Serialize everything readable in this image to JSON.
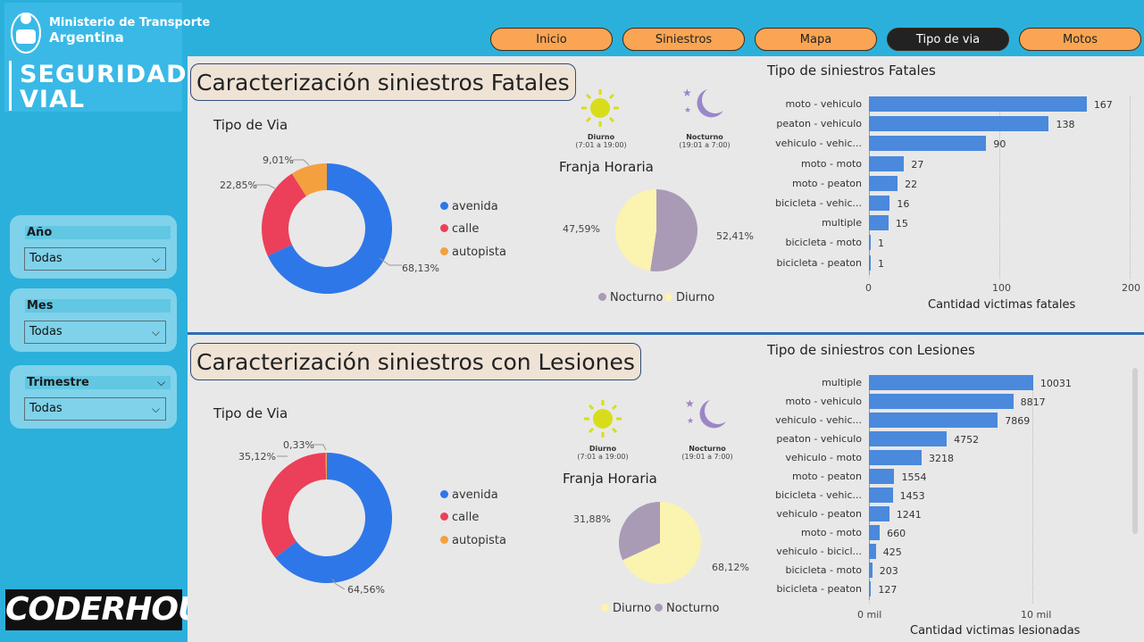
{
  "brand": {
    "ministry_line1": "Ministerio de Transporte",
    "ministry_line2": "Argentina",
    "seguridad": "SEGURIDAD",
    "vial": "VIAL",
    "footer_logo": "CODERHOUSE"
  },
  "nav": [
    "Inicio",
    "Siniestros",
    "Mapa",
    "Tipo de via",
    "Motos"
  ],
  "filters": {
    "year": {
      "label": "Año",
      "value": "Todas"
    },
    "month": {
      "label": "Mes",
      "value": "Todas"
    },
    "quarter": {
      "label": "Trimestre",
      "value": "Todas"
    }
  },
  "fatal": {
    "title": "Caracterización siniestros Fatales",
    "via_title": "Tipo de Via",
    "via_labels": {
      "avenida": "68,13%",
      "calle": "22,85%",
      "autopista": "9,01%"
    },
    "via_values": [
      68.13,
      22.85,
      9.01
    ],
    "legend": [
      "avenida",
      "calle",
      "autopista"
    ],
    "diurno_label": "Diurno",
    "diurno_range": "(7:01 a 19:00)",
    "nocturno_label": "Nocturno",
    "nocturno_range": "(19:01 a 7:00)",
    "franja_title": "Franja Horaria",
    "franja_left": "47,59%",
    "franja_right": "52,41%",
    "franja_values": {
      "nocturno": 52.41,
      "diurno": 47.59
    },
    "franja_legend": [
      "Nocturno",
      "Diurno"
    ],
    "bar_title": "Tipo de siniestros Fatales",
    "bar_axis_title": "Cantidad victimas fatales",
    "bar_ticks": [
      "0",
      "100",
      "200"
    ],
    "bars": [
      {
        "label": "moto - vehiculo",
        "value": 167
      },
      {
        "label": "peaton - vehiculo",
        "value": 138
      },
      {
        "label": "vehiculo - vehic...",
        "value": 90
      },
      {
        "label": "moto - moto",
        "value": 27
      },
      {
        "label": "moto - peaton",
        "value": 22
      },
      {
        "label": "bicicleta - vehic...",
        "value": 16
      },
      {
        "label": "multiple",
        "value": 15
      },
      {
        "label": "bicicleta - moto",
        "value": 1
      },
      {
        "label": "bicicleta - peaton",
        "value": 1
      }
    ]
  },
  "lesion": {
    "title": "Caracterización siniestros con Lesiones",
    "via_title": "Tipo de Via",
    "via_labels": {
      "avenida": "64,56%",
      "calle": "35,12%",
      "autopista": "0,33%"
    },
    "via_values": [
      64.56,
      35.12,
      0.33
    ],
    "legend": [
      "avenida",
      "calle",
      "autopista"
    ],
    "diurno_label": "Diurno",
    "diurno_range": "(7:01 a 19:00)",
    "nocturno_label": "Nocturno",
    "nocturno_range": "(19:01 a 7:00)",
    "franja_title": "Franja Horaria",
    "franja_left": "31,88%",
    "franja_right": "68,12%",
    "franja_values": {
      "diurno": 68.12,
      "nocturno": 31.88
    },
    "franja_legend": [
      "Diurno",
      "Nocturno"
    ],
    "bar_title": "Tipo de siniestros con Lesiones",
    "bar_axis_title": "Cantidad victimas lesionadas",
    "bar_ticks": [
      "0 mil",
      "10 mil"
    ],
    "bars": [
      {
        "label": "multiple",
        "value": 10031
      },
      {
        "label": "moto - vehiculo",
        "value": 8817
      },
      {
        "label": "vehiculo - vehic...",
        "value": 7869
      },
      {
        "label": "peaton - vehiculo",
        "value": 4752
      },
      {
        "label": "vehiculo - moto",
        "value": 3218
      },
      {
        "label": "moto - peaton",
        "value": 1554
      },
      {
        "label": "bicicleta - vehic...",
        "value": 1453
      },
      {
        "label": "vehiculo - peaton",
        "value": 1241
      },
      {
        "label": "moto - moto",
        "value": 660
      },
      {
        "label": "vehiculo - bicicl...",
        "value": 425
      },
      {
        "label": "bicicleta - moto",
        "value": 203
      },
      {
        "label": "bicicleta - peaton",
        "value": 127
      }
    ]
  },
  "colors": {
    "avenida": "#2e77e8",
    "calle": "#ec3f5a",
    "autopista": "#f4a03e",
    "nocturno": "#a99bb5",
    "diurno": "#fbf3b0",
    "bar": "#4a89dc"
  },
  "chart_data": [
    {
      "type": "pie",
      "title": "Tipo de Via",
      "categories": [
        "avenida",
        "calle",
        "autopista"
      ],
      "values": [
        68.13,
        22.85,
        9.01
      ]
    },
    {
      "type": "pie",
      "title": "Franja Horaria",
      "categories": [
        "Nocturno",
        "Diurno"
      ],
      "values": [
        52.41,
        47.59
      ]
    },
    {
      "type": "bar",
      "title": "Tipo de siniestros Fatales",
      "xlabel": "Cantidad victimas fatales",
      "categories": [
        "moto - vehiculo",
        "peaton - vehiculo",
        "vehiculo - vehic...",
        "moto - moto",
        "moto - peaton",
        "bicicleta - vehic...",
        "multiple",
        "bicicleta - moto",
        "bicicleta - peaton"
      ],
      "values": [
        167,
        138,
        90,
        27,
        22,
        16,
        15,
        1,
        1
      ],
      "xlim": [
        0,
        200
      ]
    },
    {
      "type": "pie",
      "title": "Tipo de Via",
      "categories": [
        "avenida",
        "calle",
        "autopista"
      ],
      "values": [
        64.56,
        35.12,
        0.33
      ]
    },
    {
      "type": "pie",
      "title": "Franja Horaria",
      "categories": [
        "Diurno",
        "Nocturno"
      ],
      "values": [
        68.12,
        31.88
      ]
    },
    {
      "type": "bar",
      "title": "Tipo de siniestros con Lesiones",
      "xlabel": "Cantidad victimas lesionadas",
      "categories": [
        "multiple",
        "moto - vehiculo",
        "vehiculo - vehic...",
        "peaton - vehiculo",
        "vehiculo - moto",
        "moto - peaton",
        "bicicleta - vehic...",
        "vehiculo - peaton",
        "moto - moto",
        "vehiculo - bicicl...",
        "bicicleta - moto",
        "bicicleta - peaton"
      ],
      "values": [
        10031,
        8817,
        7869,
        4752,
        3218,
        1554,
        1453,
        1241,
        660,
        425,
        203,
        127
      ],
      "xlim": [
        0,
        11000
      ]
    }
  ]
}
